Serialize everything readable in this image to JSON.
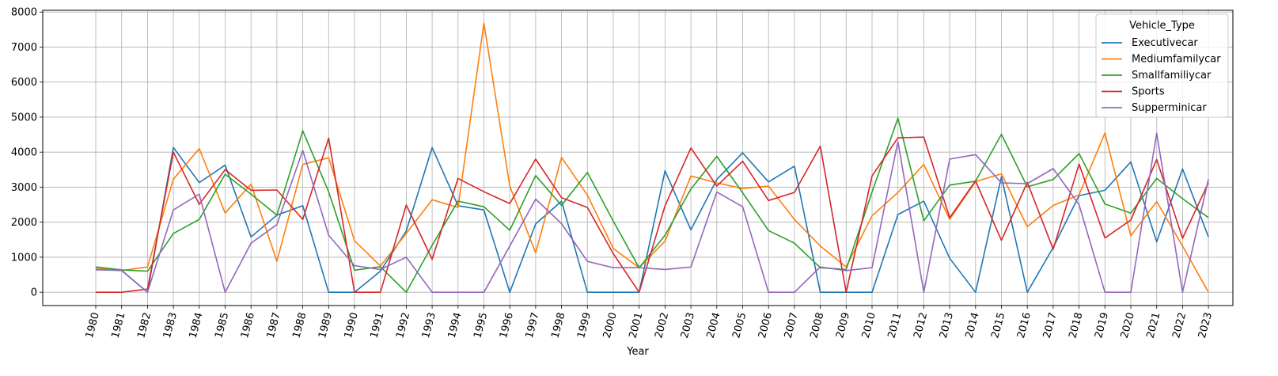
{
  "chart_data": {
    "type": "line",
    "xlabel": "Year",
    "ylabel": "",
    "title": "",
    "ylim": [
      -380,
      8050
    ],
    "yticks": [
      0,
      1000,
      2000,
      3000,
      4000,
      5000,
      6000,
      7000,
      8000
    ],
    "grid": true,
    "legend_title": "Vehicle_Type",
    "legend_position": "top-right",
    "x": [
      "1980",
      "1981",
      "1982",
      "1983",
      "1984",
      "1985",
      "1986",
      "1987",
      "1988",
      "1989",
      "1990",
      "1991",
      "1992",
      "1993",
      "1994",
      "1995",
      "1996",
      "1997",
      "1998",
      "1999",
      "2000",
      "2001",
      "2002",
      "2003",
      "2004",
      "2005",
      "2006",
      "2007",
      "2008",
      "2009",
      "2010",
      "2011",
      "2012",
      "2013",
      "2014",
      "2015",
      "2016",
      "2017",
      "2018",
      "2019",
      "2020",
      "2021",
      "2022",
      "2023"
    ],
    "series": [
      {
        "name": "Executivecar",
        "color": "#1f77b4",
        "values": [
          650,
          620,
          0,
          4130,
          3130,
          3630,
          1580,
          2200,
          2470,
          0,
          0,
          600,
          1750,
          4130,
          2470,
          2350,
          0,
          1950,
          2600,
          0,
          0,
          0,
          3470,
          1780,
          3220,
          3980,
          3150,
          3600,
          0,
          0,
          0,
          2220,
          2600,
          970,
          0,
          3300,
          0,
          1280,
          2760,
          2910,
          3720,
          1440,
          3520,
          1580
        ]
      },
      {
        "name": "Mediumfamilycar",
        "color": "#ff7f0e",
        "values": [
          700,
          620,
          720,
          3230,
          4100,
          2260,
          3090,
          880,
          3650,
          3840,
          1470,
          750,
          1680,
          2640,
          2420,
          7680,
          3030,
          1120,
          3850,
          2770,
          1250,
          700,
          1460,
          3320,
          3120,
          2960,
          3030,
          2080,
          1320,
          720,
          2180,
          2850,
          3650,
          2080,
          3160,
          3380,
          1870,
          2480,
          2780,
          4550,
          1610,
          2590,
          1320,
          0
        ]
      },
      {
        "name": "Smallfamiliycar",
        "color": "#2ca02c",
        "values": [
          720,
          640,
          600,
          1680,
          2080,
          3370,
          2800,
          2200,
          4610,
          2870,
          630,
          730,
          0,
          1340,
          2600,
          2440,
          1770,
          3330,
          2480,
          3420,
          2030,
          700,
          1630,
          2950,
          3880,
          2840,
          1760,
          1400,
          700,
          650,
          2860,
          4970,
          2040,
          3060,
          3170,
          4510,
          3010,
          3220,
          3960,
          2520,
          2260,
          3250,
          2670,
          2130
        ]
      },
      {
        "name": "Sports",
        "color": "#d62728",
        "values": [
          0,
          0,
          90,
          4000,
          2510,
          3500,
          2910,
          2920,
          2080,
          4400,
          0,
          0,
          2490,
          940,
          3250,
          2870,
          2530,
          3800,
          2700,
          2420,
          1100,
          0,
          2470,
          4120,
          3030,
          3740,
          2620,
          2850,
          4170,
          0,
          3320,
          4410,
          4430,
          2130,
          3180,
          1480,
          3140,
          1230,
          3660,
          1550,
          2060,
          3790,
          1540,
          3130
        ]
      },
      {
        "name": "Supperminicar",
        "color": "#9467bd",
        "values": [
          640,
          630,
          0,
          2350,
          2800,
          0,
          1400,
          1930,
          4050,
          1630,
          760,
          650,
          1000,
          0,
          0,
          0,
          1320,
          2660,
          1960,
          880,
          700,
          700,
          650,
          720,
          2860,
          2440,
          0,
          0,
          720,
          620,
          700,
          4300,
          0,
          3800,
          3930,
          3120,
          3100,
          3530,
          2500,
          0,
          0,
          4540,
          0,
          3230
        ]
      }
    ]
  }
}
